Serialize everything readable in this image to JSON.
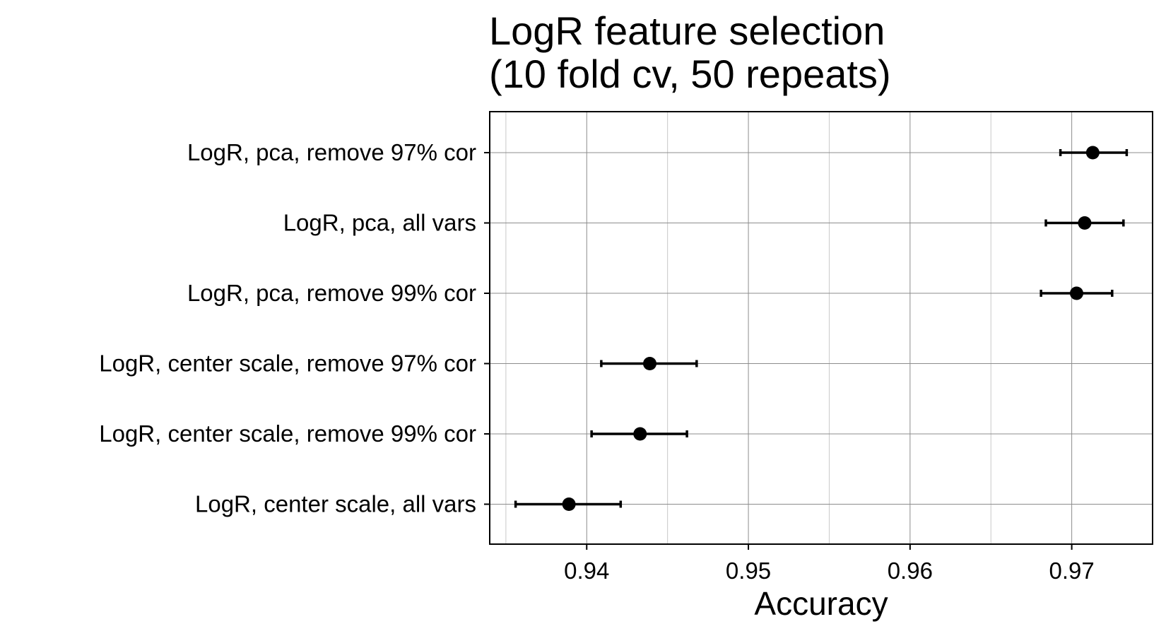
{
  "chart_data": {
    "type": "scatter",
    "title": [
      "LogR feature selection",
      "(10 fold cv, 50 repeats)"
    ],
    "xlabel": "Accuracy",
    "ylabel": "",
    "xlim": [
      0.934,
      0.975
    ],
    "xticks": [
      0.94,
      0.95,
      0.96,
      0.97
    ],
    "xtick_labels": [
      "0.94",
      "0.95",
      "0.96",
      "0.97"
    ],
    "x_minor_grid": [
      0.935,
      0.945,
      0.955,
      0.965
    ],
    "grid": true,
    "categories": [
      "LogR, pca, remove 97% cor",
      "LogR, pca, all vars",
      "LogR, pca, remove 99% cor",
      "LogR, center scale, remove 97% cor",
      "LogR, center scale, remove 99% cor",
      "LogR, center scale, all vars"
    ],
    "series": [
      {
        "values": [
          0.9713,
          0.9708,
          0.9703,
          0.9439,
          0.9433,
          0.9389
        ],
        "lower": [
          0.9693,
          0.9684,
          0.9681,
          0.9409,
          0.9403,
          0.9356
        ],
        "upper": [
          0.9734,
          0.9732,
          0.9725,
          0.9468,
          0.9462,
          0.9421
        ]
      }
    ],
    "colors": {
      "point": "#000000",
      "errorbar": "#000000",
      "major_grid": "#8c8c8c",
      "minor_grid": "#c8c8c8",
      "panel_border": "#000000"
    }
  }
}
